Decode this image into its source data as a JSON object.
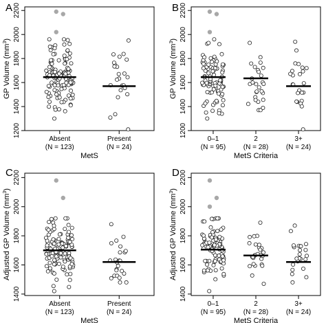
{
  "chart_data": [
    {
      "panel": "A",
      "type": "scatter",
      "ylabel": "GP Volume (mm³)",
      "ylabel_main": "GP Volume (mm",
      "ylabel_sup": "3",
      "ylabel_end": ")",
      "xlabel": "MetS",
      "ylim": [
        1200,
        2230
      ],
      "yticks": [
        1200,
        1400,
        1600,
        1800,
        2000,
        2200
      ],
      "groups": [
        {
          "label": "Absent",
          "n_label": "(N = 123)",
          "median": 1645,
          "outliers": [
            2190,
            2170,
            2020
          ],
          "min": 1300,
          "max": 1960,
          "count": 123
        },
        {
          "label": "Present",
          "n_label": "(N = 24)",
          "median": 1570,
          "outliers": [],
          "min": 1210,
          "max": 1950,
          "count": 24
        }
      ]
    },
    {
      "panel": "B",
      "type": "scatter",
      "ylabel": "GP Volume (mm³)",
      "ylabel_main": "GP Volume (mm",
      "ylabel_sup": "3",
      "ylabel_end": ")",
      "xlabel": "MetS Criteria",
      "ylim": [
        1200,
        2230
      ],
      "yticks": [
        1200,
        1400,
        1600,
        1800,
        2000,
        2200
      ],
      "groups": [
        {
          "label": "0–1",
          "n_label": "(N = 95)",
          "median": 1645,
          "outliers": [
            2190,
            2170,
            2020
          ],
          "min": 1300,
          "max": 1960,
          "count": 95
        },
        {
          "label": "2",
          "n_label": "(N = 28)",
          "median": 1635,
          "outliers": [],
          "min": 1370,
          "max": 1930,
          "count": 28
        },
        {
          "label": "3+",
          "n_label": "(N = 24)",
          "median": 1570,
          "outliers": [],
          "min": 1210,
          "max": 1940,
          "count": 24
        }
      ]
    },
    {
      "panel": "C",
      "type": "scatter",
      "ylabel": "Adjusted GP Volume (mm³)",
      "ylabel_main": "Adjusted GP Volume (mm",
      "ylabel_sup": "3",
      "ylabel_end": ")",
      "xlabel": "MetS",
      "ylim": [
        1390,
        2230
      ],
      "yticks": [
        1400,
        1600,
        1800,
        2000,
        2200
      ],
      "groups": [
        {
          "label": "Absent",
          "n_label": "(N = 123)",
          "median": 1700,
          "outliers": [
            2180,
            2060
          ],
          "min": 1420,
          "max": 1920,
          "count": 123
        },
        {
          "label": "Present",
          "n_label": "(N = 24)",
          "median": 1620,
          "outliers": [],
          "min": 1480,
          "max": 1880,
          "count": 24
        }
      ]
    },
    {
      "panel": "D",
      "type": "scatter",
      "ylabel": "Adjusted GP Volume (mm³)",
      "ylabel_main": "Adjusted GP Volume (mm",
      "ylabel_sup": "3",
      "ylabel_end": ")",
      "xlabel": "MetS Criteria",
      "ylim": [
        1390,
        2230
      ],
      "yticks": [
        1400,
        1600,
        1800,
        2000,
        2200
      ],
      "groups": [
        {
          "label": "0–1",
          "n_label": "(N = 95)",
          "median": 1705,
          "outliers": [
            2180,
            2060,
            2000
          ],
          "min": 1420,
          "max": 1920,
          "count": 95
        },
        {
          "label": "2",
          "n_label": "(N = 28)",
          "median": 1665,
          "outliers": [],
          "min": 1470,
          "max": 1890,
          "count": 28
        },
        {
          "label": "3+",
          "n_label": "(N = 24)",
          "median": 1620,
          "outliers": [],
          "min": 1480,
          "max": 1870,
          "count": 24
        }
      ]
    }
  ],
  "colors": {
    "point": "#ffffff",
    "point_stroke": "#222222",
    "outlier": "#a8a8a8",
    "median": "#000000",
    "axis": "#000000"
  }
}
